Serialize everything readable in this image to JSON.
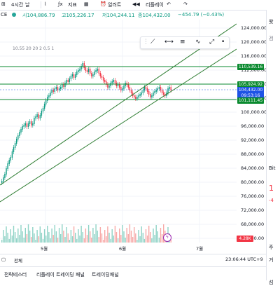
{
  "toolbar": {
    "timeframe": "4시간",
    "candle_type": "날",
    "indicator_label": "지표",
    "alert_label": "얼러트",
    "replay_label": "리플레이"
  },
  "ohlc": {
    "symbol": "CE",
    "open": "시104,886.79",
    "high": "고105,226.17",
    "low": "저104,244.11",
    "close": "종104,432.00",
    "change": "−454.79 (−0.43%)"
  },
  "indicator_values": "10.55 20 20 2 0.5 1",
  "price_axis": {
    "labels": [
      "124,000.00",
      "120,000.00",
      "116,000.00",
      "112,000.00",
      "108,000.00",
      "104,000.00",
      "100,000.00",
      "96,000.00",
      "92,000.00",
      "88,000.00",
      "84,000.00",
      "80,000.00",
      "76,000.00",
      "72,000.00",
      "68,000.00",
      "64,000.00"
    ],
    "tags": {
      "upper_level": "110,539.16",
      "mid_level": "105,924.92",
      "current_price": "104,432.00",
      "countdown": "09:53:16",
      "lower_level": "101,111.45"
    }
  },
  "time_axis": {
    "labels": [
      "5월",
      "6월",
      "7월"
    ]
  },
  "volume_tag": "4.28K",
  "range_bar": {
    "left_text": "전체",
    "clock": "23:06:44 UTC+9"
  },
  "bottom_tabs": [
    "전략테스터",
    "리플레이 트레이딩 패널",
    "트레이딩패널"
  ],
  "right_strip": {
    "items": [
      "왓",
      "검",
      "Bit",
      "1",
      "-4",
      "주",
      "거",
      "섬"
    ]
  },
  "colors": {
    "up": "#26a69a",
    "down": "#ef5350",
    "up_candle": "#089981",
    "down_candle": "#f23645",
    "level_line": "#0a8a2f",
    "trend_line": "#2e7d32",
    "current_tag": "#1e53e5"
  }
}
